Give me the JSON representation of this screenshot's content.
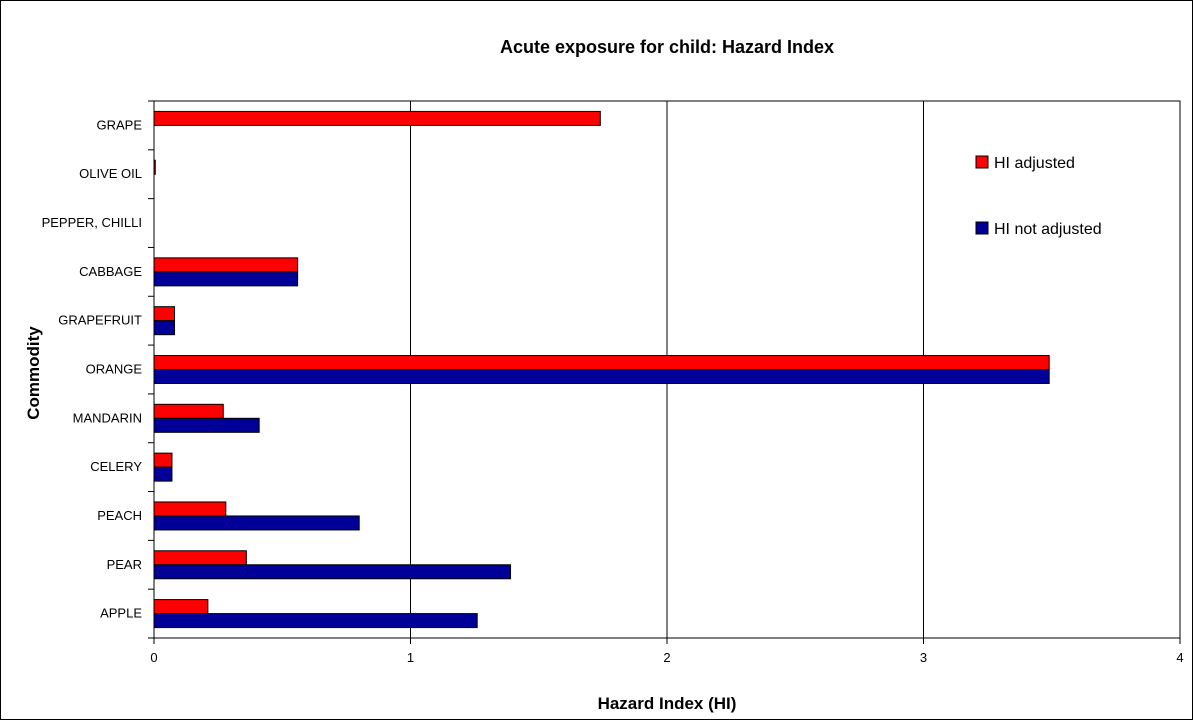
{
  "chart_data": {
    "type": "bar",
    "orientation": "horizontal",
    "title": "Acute exposure for child: Hazard Index",
    "xlabel": "Hazard Index (HI)",
    "ylabel": "Commodity",
    "xlim": [
      0,
      4
    ],
    "xticks": [
      "0",
      "1",
      "2",
      "3",
      "4"
    ],
    "grid": "vertical",
    "legend_position": "right",
    "categories": [
      "APPLE",
      "PEAR",
      "PEACH",
      "CELERY",
      "MANDARIN",
      "ORANGE",
      "GRAPEFRUIT",
      "CABBAGE",
      "PEPPER, CHILLI",
      "OLIVE OIL",
      "GRAPE"
    ],
    "series": [
      {
        "name": "HI adjusted",
        "color": "#ff0000",
        "values": [
          0.21,
          0.36,
          0.28,
          0.07,
          0.27,
          3.49,
          0.08,
          0.56,
          0.0,
          0.005,
          1.74
        ]
      },
      {
        "name": "HI not adjusted",
        "color": "#000099",
        "values": [
          1.26,
          1.39,
          0.8,
          0.07,
          0.41,
          3.49,
          0.08,
          0.56,
          0.0,
          0.0,
          null
        ]
      }
    ]
  }
}
